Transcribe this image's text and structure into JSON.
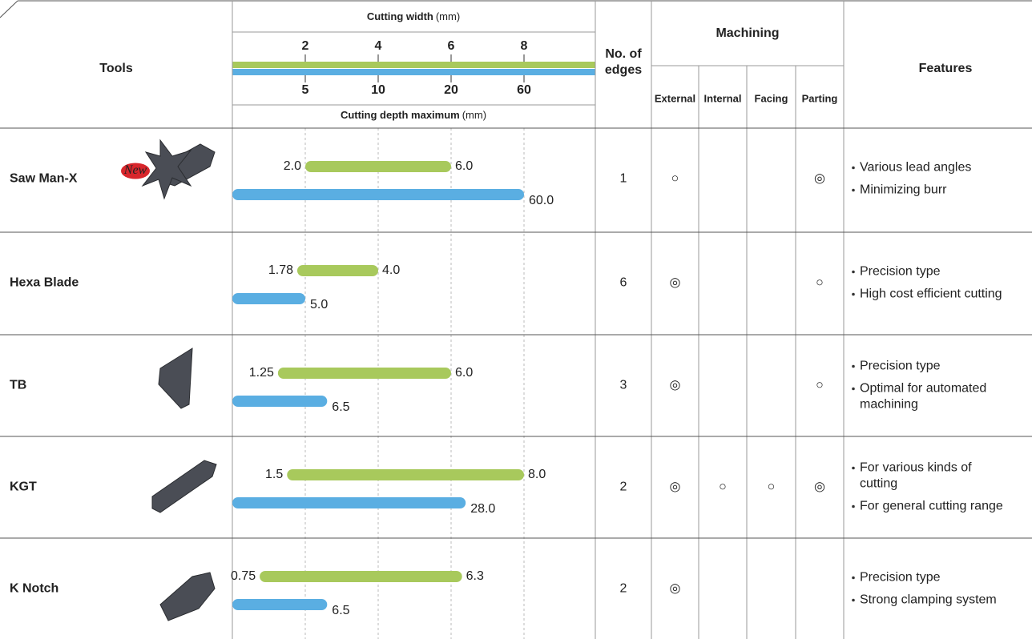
{
  "header": {
    "tools": "Tools",
    "cutting_width": {
      "title": "Cutting width",
      "unit": "(mm)",
      "lim": [
        0,
        10
      ],
      "ticks": [
        2,
        4,
        6,
        8
      ],
      "color": "#a8c95c"
    },
    "cutting_depth": {
      "title": "Cutting depth maximum",
      "unit": "(mm)",
      "lim": [
        0,
        100
      ],
      "ticks": [
        5,
        10,
        20,
        60
      ],
      "color": "#5aaee2"
    },
    "edges": [
      "No. of",
      "edges"
    ],
    "machining": "Machining",
    "machining_types": [
      "External",
      "Internal",
      "Facing",
      "Parting"
    ],
    "features": "Features"
  },
  "rows": [
    {
      "name": "Saw Man-X",
      "badge": "New",
      "width": {
        "values": [
          2,
          6
        ],
        "value_labels": [
          "2.0",
          "6.0"
        ]
      },
      "depth": {
        "values": [
          60
        ],
        "value_labels": [
          "60.0"
        ]
      },
      "edges": 1,
      "machining": [
        "○",
        null,
        null,
        "◎"
      ],
      "features": [
        [
          "Various lead angles"
        ],
        [
          "Minimizing burr"
        ]
      ]
    },
    {
      "name": "Hexa Blade",
      "width": {
        "values": [
          1.78,
          4
        ],
        "value_labels": [
          "1.78",
          "4.0"
        ]
      },
      "depth": {
        "values": [
          5
        ],
        "value_labels": [
          "5.0"
        ]
      },
      "edges": 6,
      "machining": [
        "◎",
        null,
        null,
        "○"
      ],
      "features": [
        [
          "Precision type"
        ],
        [
          "High cost efficient cutting"
        ]
      ]
    },
    {
      "name": "TB",
      "width": {
        "values": [
          1.25,
          6
        ],
        "value_labels": [
          "1.25",
          "6.0"
        ]
      },
      "depth": {
        "values": [
          6.5
        ],
        "value_labels": [
          "6.5"
        ]
      },
      "edges": 3,
      "machining": [
        "◎",
        null,
        null,
        "○"
      ],
      "features": [
        [
          "Precision type"
        ],
        [
          "Optimal for automated",
          "machining"
        ]
      ]
    },
    {
      "name": "KGT",
      "width": {
        "values": [
          1.5,
          8
        ],
        "value_labels": [
          "1.5",
          "8.0"
        ]
      },
      "depth": {
        "values": [
          28
        ],
        "value_labels": [
          "28.0"
        ]
      },
      "edges": 2,
      "machining": [
        "◎",
        "○",
        "○",
        "◎"
      ],
      "features": [
        [
          "For various kinds of",
          "cutting"
        ],
        [
          "For general cutting range"
        ]
      ]
    },
    {
      "name": "K Notch",
      "width": {
        "values": [
          0.75,
          6.3
        ],
        "value_labels": [
          "0.75",
          "6.3"
        ]
      },
      "depth": {
        "values": [
          6.5
        ],
        "value_labels": [
          "6.5"
        ]
      },
      "edges": 2,
      "machining": [
        "◎",
        null,
        null,
        null
      ],
      "features": [
        [
          "Precision type"
        ],
        [
          "Strong clamping system"
        ]
      ]
    }
  ]
}
